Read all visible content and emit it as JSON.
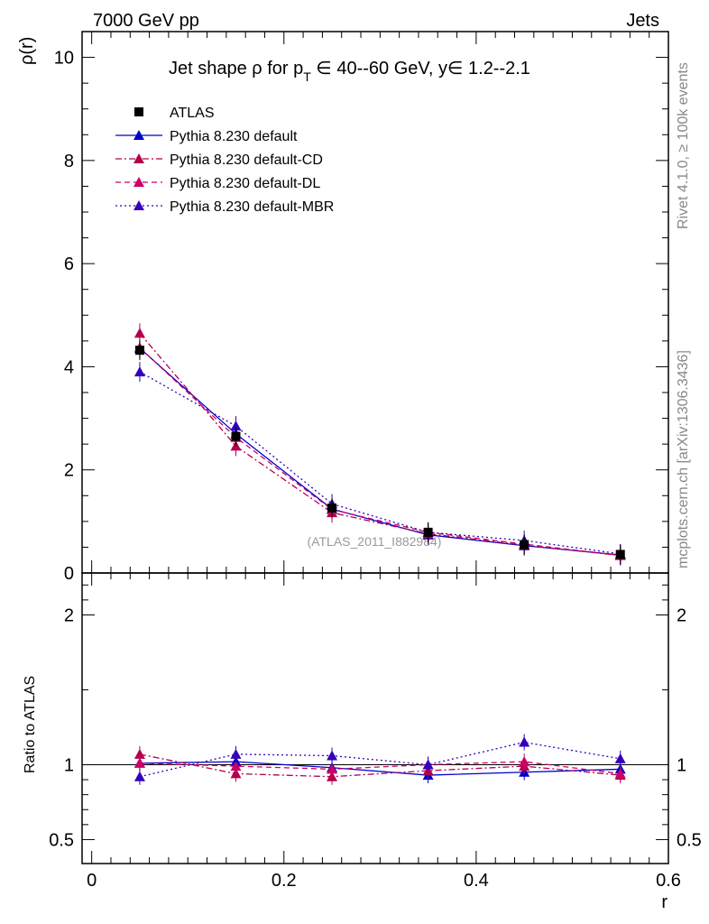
{
  "header": {
    "left": "7000 GeV pp",
    "right": "Jets"
  },
  "side_labels": {
    "rivet": "Rivet 4.1.0, ≥ 100k events",
    "mcplots": "mcplots.cern.ch [arXiv:1306.3436]"
  },
  "watermark": "(ATLAS_2011_I882984)",
  "chart_data": {
    "type": "line",
    "title_parts": [
      "Jet shape ",
      "ρ",
      " for p",
      "T",
      " ∈ 40--60 GeV, y∈ 1.2--2.1"
    ],
    "xlabel": "r",
    "ylabel": "ρ(r)",
    "ratio_ylabel": "Ratio to ATLAS",
    "xlim": [
      -0.01,
      0.6
    ],
    "ylim": [
      0,
      10.5
    ],
    "ratio_ylim": [
      0.34,
      2.28
    ],
    "x_ticks": [
      0,
      0.2,
      0.4,
      0.6
    ],
    "x_tick_labels": [
      "0",
      "0.2",
      "0.4",
      "0.6"
    ],
    "y_ticks": [
      0,
      2,
      4,
      6,
      8,
      10
    ],
    "y_tick_labels": [
      "0",
      "2",
      "4",
      "6",
      "8",
      "10"
    ],
    "ratio_ticks": [
      0.5,
      1,
      2
    ],
    "ratio_tick_labels": [
      "0.5",
      "1",
      "2"
    ],
    "x": [
      0.05,
      0.15,
      0.25,
      0.35,
      0.45,
      0.55
    ],
    "series": [
      {
        "name": "ATLAS",
        "kind": "data",
        "color": "#000000",
        "values": [
          4.32,
          2.65,
          1.26,
          0.79,
          0.55,
          0.36
        ],
        "ratio": [
          1,
          1,
          1,
          1,
          1,
          1
        ]
      },
      {
        "name": "Pythia 8.230 default",
        "kind": "mc",
        "color": "#0000cc",
        "dash": "",
        "values": [
          4.36,
          2.7,
          1.24,
          0.74,
          0.53,
          0.35
        ],
        "ratio": [
          1.01,
          1.02,
          0.98,
          0.93,
          0.95,
          0.97
        ]
      },
      {
        "name": "Pythia 8.230 default-CD",
        "kind": "mc",
        "color": "#b3004d",
        "dash": "7,3,2,3",
        "values": [
          4.65,
          2.46,
          1.17,
          0.76,
          0.54,
          0.34
        ],
        "ratio": [
          1.07,
          0.94,
          0.92,
          0.96,
          0.99,
          0.93
        ]
      },
      {
        "name": "Pythia 8.230 default-DL",
        "kind": "mc",
        "color": "#cc0066",
        "dash": "6,4",
        "values": [
          4.37,
          2.63,
          1.23,
          0.79,
          0.56,
          0.34
        ],
        "ratio": [
          1.01,
          0.99,
          0.97,
          1.0,
          1.02,
          0.94
        ]
      },
      {
        "name": "Pythia 8.230 default-MBR",
        "kind": "mc",
        "color": "#3300bb",
        "dash": "2,3",
        "values": [
          3.9,
          2.85,
          1.34,
          0.79,
          0.63,
          0.37
        ],
        "ratio": [
          0.92,
          1.07,
          1.06,
          1.0,
          1.15,
          1.04
        ]
      }
    ]
  }
}
